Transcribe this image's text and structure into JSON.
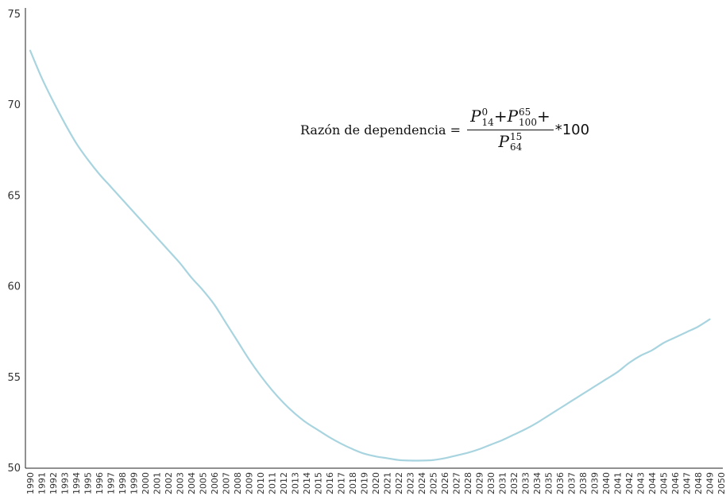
{
  "chart_data": {
    "type": "line",
    "title": "",
    "xlabel": "",
    "ylabel": "",
    "ylim": [
      50,
      75
    ],
    "xlim": [
      1990,
      2050
    ],
    "y_ticks": [
      "50",
      "55",
      "60",
      "65",
      "70",
      "75"
    ],
    "x_ticks": [
      "1990",
      "1991",
      "1992",
      "1993",
      "1994",
      "1995",
      "1996",
      "1997",
      "1998",
      "1999",
      "2000",
      "2001",
      "2002",
      "2003",
      "2004",
      "2005",
      "2006",
      "2007",
      "2008",
      "2009",
      "2010",
      "2011",
      "2012",
      "2013",
      "2014",
      "2015",
      "2016",
      "2017",
      "2018",
      "2019",
      "2020",
      "2021",
      "2022",
      "2023",
      "2024",
      "2025",
      "2026",
      "2027",
      "2028",
      "2029",
      "2030",
      "2031",
      "2032",
      "2033",
      "2034",
      "2035",
      "2036",
      "2037",
      "2038",
      "2039",
      "2040",
      "2041",
      "2042",
      "2043",
      "2044",
      "2045",
      "2046",
      "2047",
      "2048",
      "2049",
      "2050"
    ],
    "grid": false,
    "color": "#a8d4e0",
    "series": [
      {
        "x": [
          1990,
          1991,
          1992,
          1993,
          1994,
          1995,
          1996,
          1997,
          1998,
          1999,
          2000,
          2001,
          2002,
          2003,
          2004,
          2005,
          2006,
          2007,
          2008,
          2009,
          2010,
          2011,
          2012,
          2013,
          2014,
          2015,
          2016,
          2017,
          2018,
          2019,
          2020,
          2021,
          2022,
          2023,
          2024,
          2025,
          2026,
          2027,
          2028,
          2029,
          2030,
          2031,
          2032,
          2033,
          2034,
          2035,
          2036,
          2037,
          2038,
          2039,
          2040,
          2041,
          2042,
          2043,
          2044,
          2045,
          2046,
          2047,
          2048,
          2049
        ],
        "values": [
          73.0,
          71.5,
          70.2,
          69.0,
          67.9,
          67.0,
          66.2,
          65.5,
          64.8,
          64.1,
          63.4,
          62.7,
          62.0,
          61.3,
          60.5,
          59.8,
          59.0,
          58.0,
          57.0,
          56.0,
          55.1,
          54.3,
          53.6,
          53.0,
          52.5,
          52.1,
          51.7,
          51.35,
          51.05,
          50.8,
          50.65,
          50.55,
          50.45,
          50.42,
          50.42,
          50.45,
          50.55,
          50.7,
          50.85,
          51.05,
          51.3,
          51.55,
          51.85,
          52.15,
          52.5,
          52.9,
          53.3,
          53.7,
          54.1,
          54.5,
          54.9,
          55.3,
          55.8,
          56.2,
          56.5,
          56.9,
          57.2,
          57.5,
          57.8,
          58.2
        ]
      }
    ],
    "annotation": {
      "label": "Razón de dependencia =",
      "num_base1": "P",
      "num_sup1": "0",
      "num_sub1": "14",
      "plus1": "+",
      "num_base2": "P",
      "num_sup2": "65",
      "num_sub2": "100",
      "plus2": "+",
      "den_base": "P",
      "den_sup": "15",
      "den_sub": "64",
      "tail": "*100"
    }
  }
}
